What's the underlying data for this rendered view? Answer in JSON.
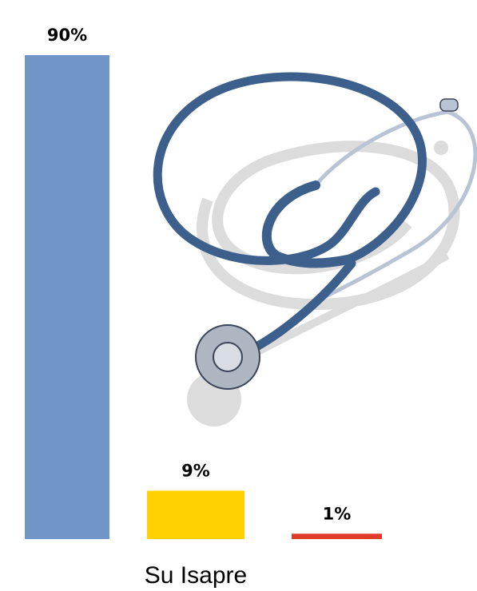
{
  "chart_data": {
    "type": "bar",
    "categories": [
      null,
      "Su Isapre",
      null
    ],
    "values": [
      90,
      9,
      1
    ],
    "value_labels": [
      "90%",
      "9%",
      "1%"
    ],
    "colors": [
      "#7096c8",
      "#ffd200",
      "#e03a28"
    ]
  }
}
